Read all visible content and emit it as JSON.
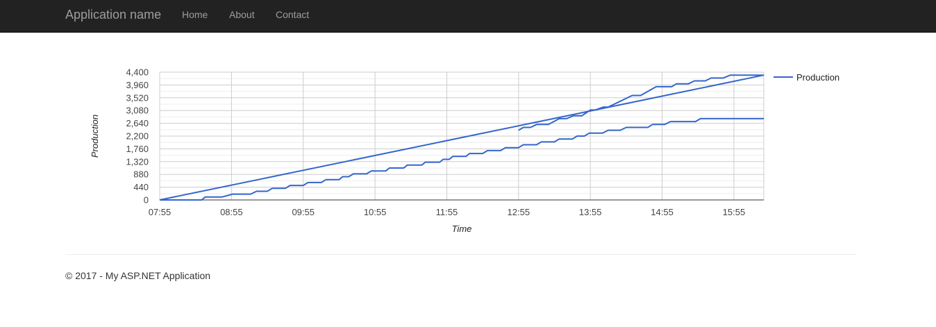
{
  "navbar": {
    "brand": "Application name",
    "links": [
      "Home",
      "About",
      "Contact"
    ]
  },
  "chart_data": {
    "type": "line",
    "title": "",
    "xlabel": "Time",
    "ylabel": "Production",
    "xlim": [
      "07:55",
      "16:20"
    ],
    "ylim": [
      0,
      4400
    ],
    "x_ticks": [
      "07:55",
      "08:55",
      "09:55",
      "10:55",
      "11:55",
      "12:55",
      "13:55",
      "14:55",
      "15:55"
    ],
    "y_ticks": [
      "0",
      "440",
      "880",
      "1,320",
      "1,760",
      "2,200",
      "2,640",
      "3,080",
      "3,520",
      "3,960",
      "4,400"
    ],
    "grid": true,
    "legend": "right",
    "color": "#3366cc",
    "series": [
      {
        "name": "Production",
        "points": [
          [
            "07:55",
            0
          ],
          [
            "08:30",
            0
          ],
          [
            "08:33",
            100
          ],
          [
            "08:47",
            100
          ],
          [
            "08:56",
            200
          ],
          [
            "09:11",
            200
          ],
          [
            "09:16",
            300
          ],
          [
            "09:25",
            300
          ],
          [
            "09:29",
            400
          ],
          [
            "09:40",
            400
          ],
          [
            "09:44",
            500
          ],
          [
            "09:55",
            500
          ],
          [
            "09:59",
            600
          ],
          [
            "10:10",
            600
          ],
          [
            "10:14",
            700
          ],
          [
            "10:25",
            700
          ],
          [
            "10:28",
            800
          ],
          [
            "10:33",
            800
          ],
          [
            "10:37",
            900
          ],
          [
            "10:48",
            900
          ],
          [
            "10:52",
            1000
          ],
          [
            "11:04",
            1000
          ],
          [
            "11:07",
            1100
          ],
          [
            "11:19",
            1100
          ],
          [
            "11:22",
            1200
          ],
          [
            "11:34",
            1200
          ],
          [
            "11:37",
            1300
          ],
          [
            "11:49",
            1300
          ],
          [
            "11:52",
            1400
          ],
          [
            "11:57",
            1400
          ],
          [
            "12:00",
            1500
          ],
          [
            "12:11",
            1500
          ],
          [
            "12:14",
            1600
          ],
          [
            "12:25",
            1600
          ],
          [
            "12:29",
            1700
          ],
          [
            "12:40",
            1700
          ],
          [
            "12:44",
            1800
          ],
          [
            "12:55",
            1800
          ],
          [
            "12:59",
            1900
          ],
          [
            "13:10",
            1900
          ],
          [
            "13:14",
            2000
          ],
          [
            "13:25",
            2000
          ],
          [
            "13:29",
            2100
          ],
          [
            "13:40",
            2100
          ],
          [
            "13:44",
            2200
          ],
          [
            "13:50",
            2200
          ],
          [
            "13:54",
            2300
          ],
          [
            "14:05",
            2300
          ],
          [
            "14:10",
            2400
          ],
          [
            "14:20",
            2400
          ],
          [
            "14:25",
            2500
          ],
          [
            "14:43",
            2500
          ],
          [
            "14:47",
            2600
          ],
          [
            "14:57",
            2600
          ],
          [
            "15:02",
            2700
          ],
          [
            "15:23",
            2700
          ],
          [
            "15:27",
            2800
          ],
          [
            "16:20",
            2800
          ]
        ]
      },
      {
        "name": "",
        "points": [
          [
            "07:55",
            0
          ],
          [
            "16:20",
            4300
          ]
        ]
      },
      {
        "name": "",
        "points": [
          [
            "12:55",
            2400
          ],
          [
            "12:59",
            2500
          ],
          [
            "13:05",
            2500
          ],
          [
            "13:10",
            2600
          ],
          [
            "13:20",
            2600
          ],
          [
            "13:29",
            2800
          ],
          [
            "13:35",
            2800
          ],
          [
            "13:41",
            2900
          ],
          [
            "13:48",
            2900
          ],
          [
            "13:55",
            3100
          ],
          [
            "13:59",
            3100
          ],
          [
            "14:06",
            3200
          ],
          [
            "14:10",
            3200
          ],
          [
            "14:30",
            3600
          ],
          [
            "14:37",
            3600
          ],
          [
            "14:50",
            3900
          ],
          [
            "15:03",
            3900
          ],
          [
            "15:07",
            4000
          ],
          [
            "15:17",
            4000
          ],
          [
            "15:22",
            4100
          ],
          [
            "15:31",
            4100
          ],
          [
            "15:36",
            4200
          ],
          [
            "15:46",
            4200
          ],
          [
            "15:52",
            4300
          ],
          [
            "16:20",
            4300
          ]
        ]
      }
    ]
  },
  "footer": {
    "text": "© 2017 - My ASP.NET Application"
  }
}
